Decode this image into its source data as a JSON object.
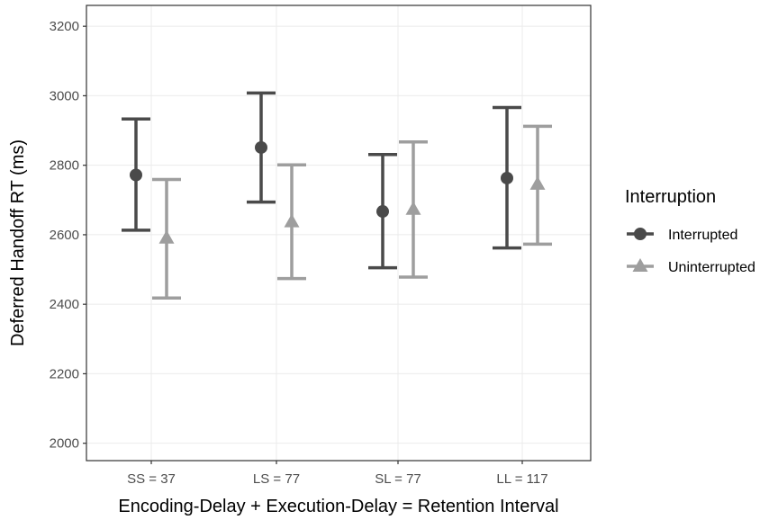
{
  "chart_data": {
    "type": "scatter",
    "xlabel": "Encoding-Delay + Execution-Delay = Retention Interval",
    "ylabel": "Deferred Handoff RT (ms)",
    "categories": [
      "SS = 37",
      "LS = 77",
      "SL = 77",
      "LL = 117"
    ],
    "ylim": [
      1950,
      3260
    ],
    "yticks": [
      2000,
      2200,
      2400,
      2600,
      2800,
      3000,
      3200
    ],
    "grid": "major gridlines at x categories and y ticks (white on white)",
    "legend": {
      "title": "Interruption",
      "position": "right",
      "entries": [
        "Interrupted",
        "Uninterrupted"
      ]
    },
    "series": [
      {
        "name": "Interrupted",
        "marker": "circle",
        "color": "#4a4a4a",
        "mean": [
          2772,
          2851,
          2667,
          2763
        ],
        "lower": [
          2613,
          2694,
          2505,
          2562
        ],
        "upper": [
          2933,
          3008,
          2831,
          2966
        ]
      },
      {
        "name": "Uninterrupted",
        "marker": "triangle",
        "color": "#9e9e9e",
        "mean": [
          2590,
          2637,
          2673,
          2745
        ],
        "lower": [
          2418,
          2474,
          2478,
          2573
        ],
        "upper": [
          2759,
          2801,
          2867,
          2912
        ]
      }
    ]
  }
}
